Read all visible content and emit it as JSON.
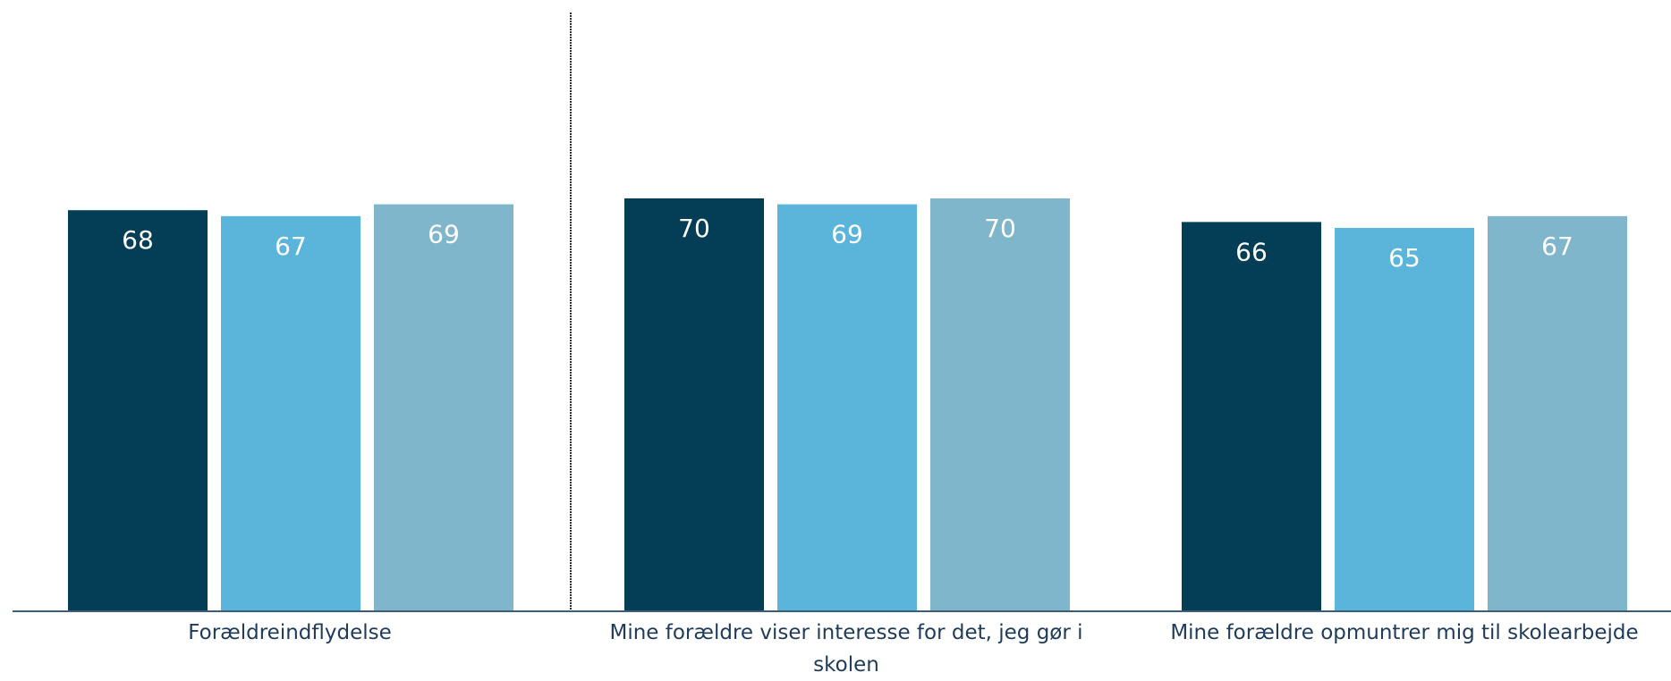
{
  "chart_data": {
    "type": "bar",
    "title": "",
    "xlabel": "",
    "ylabel": "",
    "ylim": [
      0,
      100
    ],
    "grid": false,
    "legend": "none",
    "categories": [
      "Forældreindflydelse",
      "Mine forældre viser interesse for det, jeg gør i skolen",
      "Mine forældre opmuntrer mig til skolearbejde"
    ],
    "series": [
      {
        "values": [
          68,
          70,
          66
        ]
      },
      {
        "values": [
          67,
          69,
          65
        ]
      },
      {
        "values": [
          69,
          70,
          67
        ]
      }
    ],
    "colors": [
      "#033e56",
      "#5bb4da",
      "#7fb6cb"
    ],
    "axis_color": "#3e5d78",
    "divider_color": "#333333",
    "label_color": "#ffffff",
    "category_label_color": "#1f3b5a"
  }
}
